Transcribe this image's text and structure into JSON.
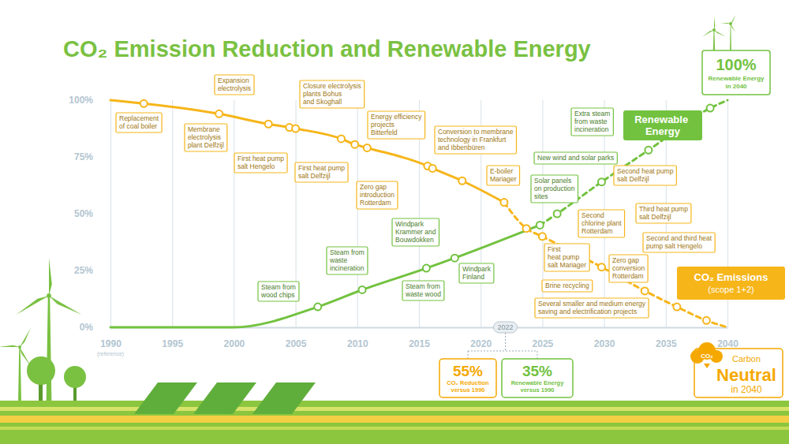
{
  "chart_data": {
    "type": "line",
    "title": "CO₂ Emission Reduction and Renewable Energy",
    "xlim": [
      1990,
      2040
    ],
    "xticks": [
      1990,
      1995,
      2000,
      2005,
      2010,
      2015,
      2020,
      2025,
      2030,
      2035,
      2040
    ],
    "xtick_note": "(reference)",
    "ylim": [
      0,
      100
    ],
    "yticks": [
      {
        "value": 0,
        "label": "0%"
      },
      {
        "value": 25,
        "label": "25%"
      },
      {
        "value": 50,
        "label": "50%"
      },
      {
        "value": 75,
        "label": "75%"
      },
      {
        "value": 100,
        "label": "100%"
      }
    ],
    "grid": true,
    "series": [
      {
        "name": "CO₂ Emissions",
        "label_note": "(scope 1+2)",
        "color": "#f6b519",
        "line_style": "solid",
        "marker": "circle",
        "x": [
          1990,
          1992.7,
          1998.8,
          2002.8,
          2004.5,
          2005,
          2008.7,
          2009.8,
          2010.8,
          2015.7,
          2016.1,
          2018.5,
          2021.9
        ],
        "values": [
          100,
          98.5,
          94,
          89.5,
          88,
          87.5,
          83,
          80.5,
          79,
          71,
          70,
          64.5,
          55
        ],
        "annotations": [
          [
            "Replacement",
            "of coal boiler"
          ],
          [
            "Membrane",
            "electrolysis",
            "plant Delfzijl"
          ],
          [
            "Expansion",
            "electrolysis"
          ],
          [
            "First heat pump",
            "salt Hengelo"
          ],
          [
            "Closure electrolysis",
            "plants Bohus",
            "and Skoghall"
          ],
          [
            "First heat pump",
            "salt Delfzijl"
          ],
          [
            "Zero gap",
            "introduction",
            "Rotterdam"
          ],
          [
            "Energy efficiency",
            "projects",
            "Bitterfeld"
          ],
          [
            "Conversion to membrane",
            "technology in Frankfurt",
            "and Ibbenbüren"
          ],
          [
            "E-boiler",
            "Mariager"
          ]
        ]
      },
      {
        "color": "#f6b519",
        "line_style": "dashed",
        "marker": "circle",
        "x": [
          2021.9,
          2023.7,
          2025,
          2029.8,
          2033.3,
          2035.9,
          2038.3,
          2040
        ],
        "values": [
          55,
          43.5,
          40,
          26.5,
          16,
          9,
          3,
          0
        ],
        "annotations": [
          [
            "First",
            "heat pump",
            "salt Mariager"
          ],
          [
            "Second heat pump",
            "salt Delfzijl"
          ],
          [
            "Third heat pump",
            "salt Delfzijl"
          ],
          [
            "Second",
            "chlorine plant",
            "Rotterdam"
          ],
          [
            "Second and third heat",
            "pump salt Hengelo"
          ],
          [
            "Zero gap",
            "conversion",
            "Rotterdam"
          ],
          [
            "Brine recycling"
          ],
          [
            "Several smaller and medium energy",
            "saving and electrification projects"
          ]
        ]
      },
      {
        "name": "Renewable Energy",
        "color": "#72c23f",
        "line_style": "solid",
        "marker": "circle",
        "x": [
          1990,
          2000,
          2006.8,
          2010.4,
          2015.6,
          2017.9,
          2024.8
        ],
        "values": [
          0,
          0,
          9,
          16.5,
          26,
          30.5,
          45
        ],
        "annotations": [
          [
            "Steam from",
            "wood chips"
          ],
          [
            "Steam from",
            "waste",
            "incineration"
          ],
          [
            "Windpark",
            "Krammer and",
            "Bouwdokken"
          ],
          [
            "Steam from",
            "waste wood"
          ],
          [
            "Windpark",
            "Finland"
          ]
        ]
      },
      {
        "color": "#72c23f",
        "line_style": "dashed",
        "marker": "circle",
        "x": [
          2024.8,
          2026.2,
          2029.8,
          2033.6,
          2038.6,
          2040
        ],
        "values": [
          45,
          50,
          64,
          78,
          96.5,
          100
        ],
        "annotations": [
          [
            "Solar panels",
            "on production",
            "sites"
          ],
          [
            "New wind and solar parks"
          ],
          [
            "Extra steam",
            "from waste",
            "incineration"
          ]
        ]
      }
    ],
    "goals": [
      {
        "value_text": "100%",
        "text": [
          "Renewable Energy",
          "in 2040"
        ],
        "color": "#72c23f"
      },
      {
        "icon_text": "CO₂",
        "text": [
          "Carbon",
          "Neutral",
          "in 2040"
        ],
        "color": "#f5a800"
      }
    ],
    "status": {
      "year": 2022,
      "items": [
        {
          "value_text": "55%",
          "text": [
            "CO₂ Reduction",
            "versus 1990"
          ],
          "color": "#f5a800"
        },
        {
          "value_text": "35%",
          "text": [
            "Renewable Energy",
            "versus 1990"
          ],
          "color": "#72c23f"
        }
      ]
    }
  }
}
